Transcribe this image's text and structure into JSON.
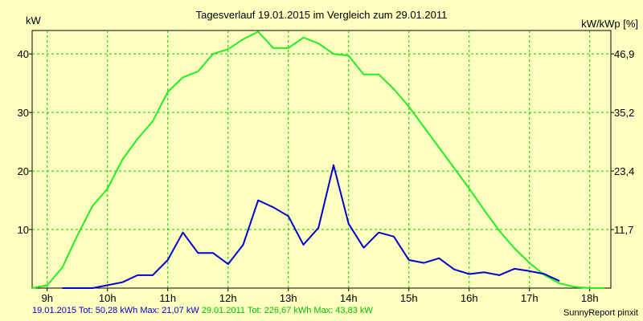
{
  "title": "Tagesverlauf 19.01.2015 im Vergleich zum 29.01.2011",
  "footer": {
    "series1_summary": "19.01.2015 Tot: 50,28 kWh Max: 21,07 kW",
    "series2_summary": "29.01.2011 Tot: 226,67 kWh Max: 43,83 kW",
    "credit": "SunnyReport pinxit"
  },
  "colors": {
    "background": "#ffffc0",
    "grid": "#00cc00",
    "series1": "#0000d0",
    "series2": "#22ee22"
  },
  "chart_data": {
    "type": "line",
    "title": "Tagesverlauf 19.01.2015 im Vergleich zum 29.01.2011",
    "ylabel": "kW",
    "ylabel_right": "kW/kWp [%]",
    "xlim": [
      8.75,
      18.35
    ],
    "ylim": [
      0,
      44
    ],
    "x_ticks": [
      9,
      10,
      11,
      12,
      13,
      14,
      15,
      16,
      17,
      18
    ],
    "x_tick_labels": [
      "9h",
      "10h",
      "11h",
      "12h",
      "13h",
      "14h",
      "15h",
      "16h",
      "17h",
      "18h"
    ],
    "y_ticks": [
      10,
      20,
      30,
      40
    ],
    "y_tick_labels": [
      "10",
      "20",
      "30",
      "40"
    ],
    "y_right_ticks": [
      10,
      20,
      30,
      40
    ],
    "y_right_tick_labels": [
      "11,7",
      "23,4",
      "35,2",
      "46,9"
    ],
    "grid": true,
    "series": [
      {
        "name": "19.01.2015",
        "x": [
          9.25,
          9.5,
          9.75,
          10.0,
          10.25,
          10.5,
          10.75,
          11.0,
          11.25,
          11.5,
          11.75,
          12.0,
          12.25,
          12.5,
          12.75,
          13.0,
          13.25,
          13.5,
          13.75,
          14.0,
          14.25,
          14.5,
          14.75,
          15.0,
          15.25,
          15.5,
          15.75,
          16.0,
          16.25,
          16.5,
          16.75,
          17.0,
          17.25,
          17.5
        ],
        "values": [
          0,
          0,
          0,
          0.5,
          1.0,
          2.2,
          2.2,
          4.8,
          9.5,
          6.0,
          6.0,
          4.1,
          7.4,
          15.0,
          13.8,
          12.3,
          7.4,
          10.3,
          21.0,
          11.0,
          6.9,
          9.5,
          8.8,
          4.8,
          4.3,
          5.1,
          3.2,
          2.4,
          2.7,
          2.2,
          3.3,
          2.9,
          2.4,
          1.2
        ]
      },
      {
        "name": "29.01.2011",
        "x": [
          8.75,
          9.0,
          9.25,
          9.5,
          9.75,
          10.0,
          10.25,
          10.5,
          10.75,
          11.0,
          11.25,
          11.5,
          11.75,
          12.0,
          12.25,
          12.5,
          12.75,
          13.0,
          13.25,
          13.5,
          13.75,
          14.0,
          14.25,
          14.5,
          14.75,
          15.0,
          15.25,
          15.5,
          15.75,
          16.0,
          16.25,
          16.5,
          16.75,
          17.0,
          17.25,
          17.5,
          17.75,
          18.0,
          18.25
        ],
        "values": [
          0,
          0.5,
          3.5,
          9.0,
          14.0,
          17.0,
          22.0,
          25.5,
          28.5,
          33.5,
          36.0,
          37.0,
          40.0,
          40.8,
          42.5,
          43.8,
          41.0,
          41.0,
          42.8,
          41.8,
          40.0,
          39.7,
          36.5,
          36.5,
          34.0,
          31.0,
          27.5,
          24.0,
          20.5,
          17.0,
          13.3,
          9.8,
          6.8,
          4.3,
          2.2,
          0.8,
          0.2,
          0,
          0
        ]
      }
    ]
  }
}
